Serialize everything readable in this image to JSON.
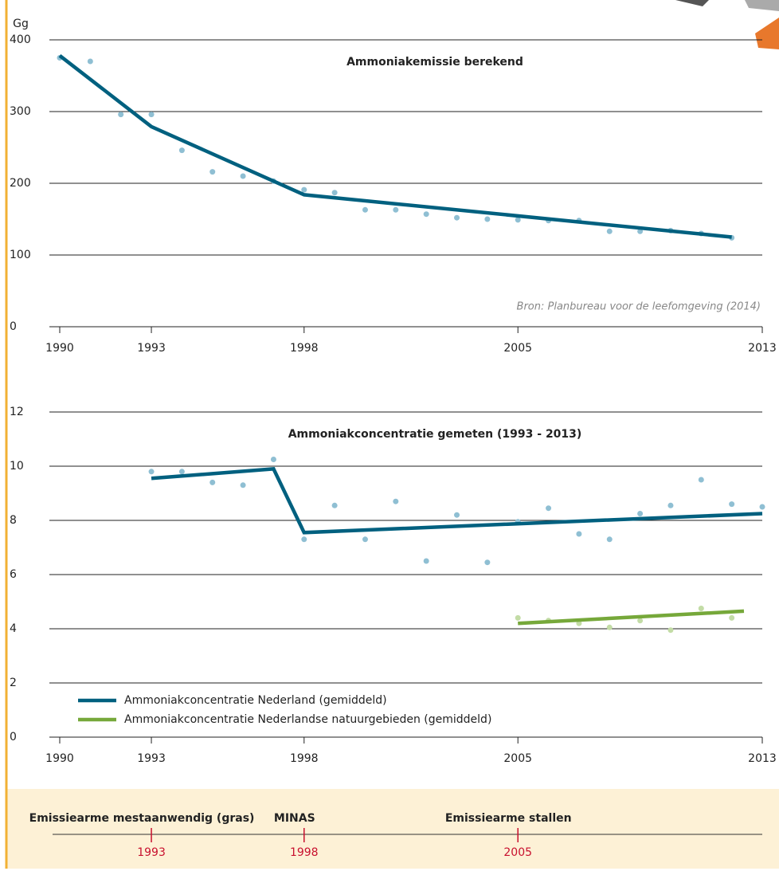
{
  "chart_data": [
    {
      "type": "line",
      "title": "Ammoniakemissie berekend",
      "ylabel": "Gg",
      "annotation": "Bron: Planbureau voor de leefomgeving (2014)",
      "xlim": [
        1990,
        2013
      ],
      "xticks": [
        1990,
        1993,
        1998,
        2005,
        2013
      ],
      "ylim": [
        0,
        400
      ],
      "yticks": [
        0,
        100,
        200,
        300,
        400
      ],
      "grid": true,
      "series": [
        {
          "mode": "markers",
          "color": "#8fbfd3",
          "x": [
            1990,
            1991,
            1992,
            1993,
            1994,
            1995,
            1996,
            1997,
            1998,
            1999,
            2000,
            2001,
            2002,
            2003,
            2004,
            2005,
            2006,
            2007,
            2008,
            2009,
            2010,
            2011,
            2012
          ],
          "values": [
            375,
            370,
            296,
            296,
            246,
            216,
            210,
            203,
            191,
            187,
            163,
            163,
            157,
            152,
            150,
            149,
            148,
            148,
            133,
            133,
            134,
            130,
            124
          ]
        },
        {
          "mode": "line",
          "color": "#00607f",
          "x": [
            1990,
            1993,
            1998,
            2012
          ],
          "values": [
            378,
            279,
            184,
            125
          ]
        }
      ]
    },
    {
      "type": "line",
      "title": "Ammoniakconcentratie gemeten (1993 - 2013)",
      "xlim": [
        1990,
        2013
      ],
      "xticks": [
        1990,
        1993,
        1998,
        2005,
        2013
      ],
      "ylim": [
        0,
        12
      ],
      "yticks": [
        0,
        2,
        4,
        6,
        8,
        10,
        12
      ],
      "grid": true,
      "legend": "lower left",
      "series": [
        {
          "mode": "markers",
          "color": "#8fbfd3",
          "x": [
            1993,
            1994,
            1995,
            1996,
            1997,
            1998,
            1999,
            2000,
            2001,
            2002,
            2003,
            2004,
            2005,
            2006,
            2007,
            2008,
            2009,
            2010,
            2011,
            2012,
            2013
          ],
          "values": [
            9.8,
            9.8,
            9.4,
            9.3,
            10.25,
            7.3,
            8.55,
            7.3,
            8.7,
            6.5,
            8.2,
            6.45,
            7.95,
            8.45,
            7.5,
            7.3,
            8.25,
            8.55,
            9.5,
            8.6,
            8.5
          ]
        },
        {
          "mode": "markers",
          "color": "#c3dca6",
          "x": [
            2005,
            2006,
            2007,
            2008,
            2009,
            2010,
            2011,
            2012
          ],
          "values": [
            4.4,
            4.3,
            4.2,
            4.05,
            4.3,
            3.95,
            4.75,
            4.4
          ]
        },
        {
          "mode": "line",
          "name": "Ammoniakconcentratie Nederland (gemiddeld)",
          "color": "#00607f",
          "x": [
            1993,
            1997,
            1998,
            2013
          ],
          "values": [
            9.55,
            9.9,
            7.55,
            8.25
          ]
        },
        {
          "mode": "line",
          "name": "Ammoniakconcentratie Nederlandse natuurgebieden (gemiddeld)",
          "color": "#76a83a",
          "x": [
            2005,
            2012.4
          ],
          "values": [
            4.2,
            4.65
          ]
        }
      ]
    },
    {
      "type": "timeline",
      "xlim": [
        1990,
        2013
      ],
      "events": [
        {
          "year": 1993,
          "label": "Emissiearme mestaanwendig (gras)"
        },
        {
          "year": 1998,
          "label": "MINAS"
        },
        {
          "year": 2005,
          "label": "Emissiearme stallen"
        }
      ]
    }
  ]
}
